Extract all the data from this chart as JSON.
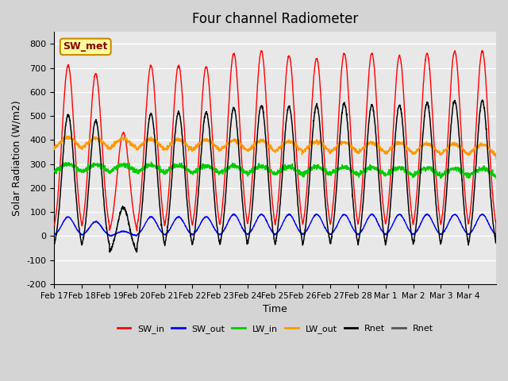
{
  "title": "Four channel Radiometer",
  "xlabel": "Time",
  "ylabel": "Solar Radiation (W/m2)",
  "ylim": [
    -200,
    850
  ],
  "yticks": [
    -200,
    -100,
    0,
    100,
    200,
    300,
    400,
    500,
    600,
    700,
    800
  ],
  "num_days": 16,
  "annotation_text": "SW_met",
  "annotation_bg": "#ffff99",
  "annotation_border": "#cc8800",
  "annotation_text_color": "#880000",
  "plot_bg": "#e8e8e8",
  "fig_bg": "#d4d4d4",
  "grid_color": "#ffffff",
  "lines": [
    {
      "label": "SW_in",
      "color": "#ff0000",
      "lw": 1.0
    },
    {
      "label": "SW_out",
      "color": "#0000ff",
      "lw": 1.0
    },
    {
      "label": "LW_in",
      "color": "#00cc00",
      "lw": 1.0
    },
    {
      "label": "LW_out",
      "color": "#ff9900",
      "lw": 1.0
    },
    {
      "label": "Rnet",
      "color": "#000000",
      "lw": 1.0
    },
    {
      "label": "Rnet",
      "color": "#555555",
      "lw": 1.0
    }
  ],
  "xtick_labels": [
    "Feb 17",
    "Feb 18",
    "Feb 19",
    "Feb 20",
    "Feb 21",
    "Feb 22",
    "Feb 23",
    "Feb 24",
    "Feb 25",
    "Feb 26",
    "Feb 27",
    "Feb 28",
    "Mar 1",
    "Mar 2",
    "Mar 3",
    "Mar 4"
  ],
  "sw_in_peaks": [
    710,
    675,
    430,
    710,
    710,
    705,
    760,
    770,
    750,
    740,
    760,
    760,
    750,
    760,
    770,
    770
  ],
  "sw_out_peaks": [
    80,
    60,
    20,
    80,
    80,
    80,
    90,
    90,
    90,
    90,
    90,
    90,
    90,
    90,
    90,
    90
  ],
  "rnet_peaks": [
    505,
    480,
    120,
    510,
    515,
    515,
    535,
    545,
    540,
    545,
    555,
    545,
    545,
    555,
    565,
    565
  ],
  "lw_in_base": 260,
  "lw_in_peak_add": 40,
  "lw_out_base": 350,
  "lw_out_peak_add": 60,
  "sw_in_base": -10,
  "rnet_night": -100
}
